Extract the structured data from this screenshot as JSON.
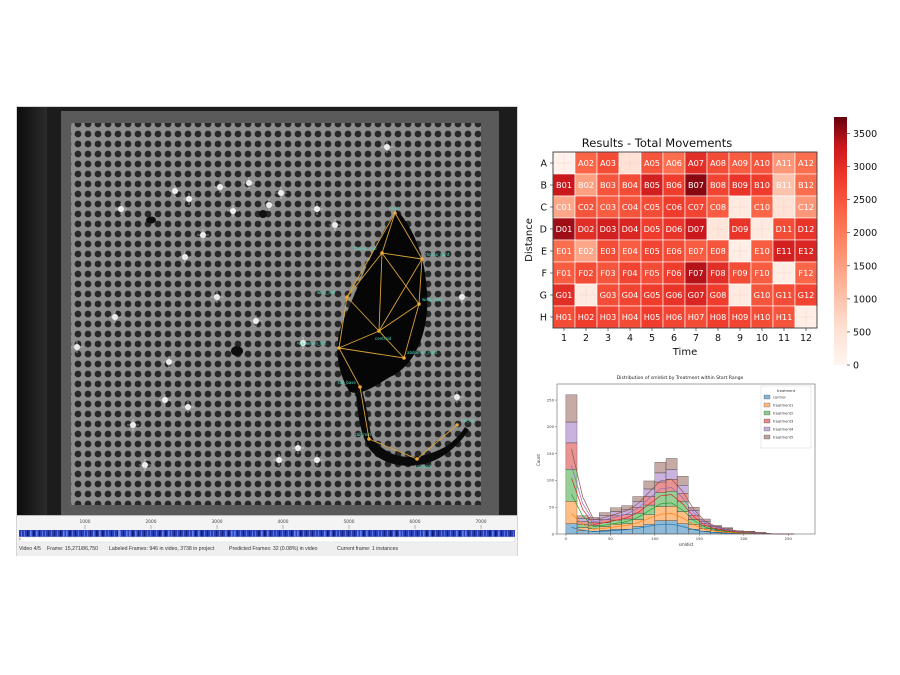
{
  "tracker": {
    "timeline_ticks": [
      "1000",
      "2000",
      "3000",
      "4000",
      "5000",
      "6000",
      "7000"
    ],
    "status": {
      "video": "Video 4/5",
      "frame": "Frame: 15,271/86,750",
      "labeled": "Labeled Frames: 946 in video, 3738 in project",
      "predicted": "Predicted Frames: 32 (0.08%) in video",
      "current": "Current frame: 1 instances"
    },
    "nodes": [
      {
        "label": "head"
      },
      {
        "label": "thorax_mid"
      },
      {
        "label": "thorax_right"
      },
      {
        "label": "wing_left"
      },
      {
        "label": "wing_right"
      },
      {
        "label": "centroid"
      },
      {
        "label": "abdomen_left"
      },
      {
        "label": "abdomen_right"
      },
      {
        "label": "tail_base"
      },
      {
        "label": "tail_mid"
      },
      {
        "label": "tail_end"
      },
      {
        "label": "tail_tip"
      }
    ]
  },
  "chart_data": [
    {
      "type": "heatmap",
      "title": "Results - Total Movements",
      "xlabel": "Time",
      "ylabel": "Distance",
      "x_ticks": [
        "1",
        "2",
        "3",
        "4",
        "5",
        "6",
        "7",
        "8",
        "9",
        "10",
        "11",
        "12"
      ],
      "rows": [
        "A",
        "B",
        "C",
        "D",
        "E",
        "F",
        "G",
        "H"
      ],
      "colorbar": {
        "min": 0,
        "max": 3750,
        "ticks": [
          0,
          500,
          1000,
          1500,
          2000,
          2500,
          3000,
          3500
        ],
        "colormap": "Reds"
      },
      "cells": [
        [
          {
            "label": "",
            "value": 100
          },
          {
            "label": "A02",
            "value": 2300
          },
          {
            "label": "A03",
            "value": 2600
          },
          {
            "label": "",
            "value": 500
          },
          {
            "label": "A05",
            "value": 2500
          },
          {
            "label": "A06",
            "value": 2200
          },
          {
            "label": "A07",
            "value": 3000
          },
          {
            "label": "A08",
            "value": 2600
          },
          {
            "label": "A09",
            "value": 2400
          },
          {
            "label": "A10",
            "value": 2500
          },
          {
            "label": "A11",
            "value": 1600
          },
          {
            "label": "A12",
            "value": 2200
          }
        ],
        [
          {
            "label": "B01",
            "value": 3300
          },
          {
            "label": "B02",
            "value": 1500
          },
          {
            "label": "B03",
            "value": 2500
          },
          {
            "label": "B04",
            "value": 2600
          },
          {
            "label": "B05",
            "value": 3200
          },
          {
            "label": "B06",
            "value": 2800
          },
          {
            "label": "B07",
            "value": 3600
          },
          {
            "label": "B08",
            "value": 2700
          },
          {
            "label": "B09",
            "value": 2900
          },
          {
            "label": "B10",
            "value": 2800
          },
          {
            "label": "B11",
            "value": 1000
          },
          {
            "label": "B12",
            "value": 2200
          }
        ],
        [
          {
            "label": "C01",
            "value": 1400
          },
          {
            "label": "C02",
            "value": 2500
          },
          {
            "label": "C03",
            "value": 2400
          },
          {
            "label": "C04",
            "value": 2500
          },
          {
            "label": "C05",
            "value": 2600
          },
          {
            "label": "C06",
            "value": 2800
          },
          {
            "label": "C07",
            "value": 2700
          },
          {
            "label": "C08",
            "value": 2400
          },
          {
            "label": "",
            "value": 300
          },
          {
            "label": "C10",
            "value": 2300
          },
          {
            "label": "",
            "value": 500
          },
          {
            "label": "C12",
            "value": 1600
          }
        ],
        [
          {
            "label": "D01",
            "value": 3500
          },
          {
            "label": "D02",
            "value": 3000
          },
          {
            "label": "D03",
            "value": 3200
          },
          {
            "label": "D04",
            "value": 3100
          },
          {
            "label": "D05",
            "value": 2800
          },
          {
            "label": "D06",
            "value": 2900
          },
          {
            "label": "D07",
            "value": 3300
          },
          {
            "label": "",
            "value": 400
          },
          {
            "label": "D09",
            "value": 2900
          },
          {
            "label": "",
            "value": 300
          },
          {
            "label": "D11",
            "value": 2600
          },
          {
            "label": "D12",
            "value": 2900
          }
        ],
        [
          {
            "label": "E01",
            "value": 2200
          },
          {
            "label": "E02",
            "value": 1400
          },
          {
            "label": "E03",
            "value": 2600
          },
          {
            "label": "E04",
            "value": 2400
          },
          {
            "label": "E05",
            "value": 2700
          },
          {
            "label": "E06",
            "value": 2600
          },
          {
            "label": "E07",
            "value": 2400
          },
          {
            "label": "E08",
            "value": 2500
          },
          {
            "label": "",
            "value": 200
          },
          {
            "label": "E10",
            "value": 2400
          },
          {
            "label": "E11",
            "value": 3200
          },
          {
            "label": "E12",
            "value": 3100
          }
        ],
        [
          {
            "label": "F01",
            "value": 2400
          },
          {
            "label": "F02",
            "value": 2600
          },
          {
            "label": "F03",
            "value": 2500
          },
          {
            "label": "F04",
            "value": 2700
          },
          {
            "label": "F05",
            "value": 2600
          },
          {
            "label": "F06",
            "value": 2800
          },
          {
            "label": "F07",
            "value": 3400
          },
          {
            "label": "F08",
            "value": 3000
          },
          {
            "label": "F09",
            "value": 2600
          },
          {
            "label": "F10",
            "value": 2400
          },
          {
            "label": "",
            "value": 200
          },
          {
            "label": "F12",
            "value": 2300
          }
        ],
        [
          {
            "label": "G01",
            "value": 3000
          },
          {
            "label": "",
            "value": 300
          },
          {
            "label": "G03",
            "value": 2600
          },
          {
            "label": "G04",
            "value": 2700
          },
          {
            "label": "G05",
            "value": 2800
          },
          {
            "label": "G06",
            "value": 2900
          },
          {
            "label": "G07",
            "value": 3100
          },
          {
            "label": "G08",
            "value": 2800
          },
          {
            "label": "",
            "value": 300
          },
          {
            "label": "G10",
            "value": 2500
          },
          {
            "label": "G11",
            "value": 2600
          },
          {
            "label": "G12",
            "value": 2700
          }
        ],
        [
          {
            "label": "H01",
            "value": 2600
          },
          {
            "label": "H02",
            "value": 2800
          },
          {
            "label": "H03",
            "value": 2700
          },
          {
            "label": "H04",
            "value": 2600
          },
          {
            "label": "H05",
            "value": 2800
          },
          {
            "label": "H06",
            "value": 2700
          },
          {
            "label": "H07",
            "value": 2600
          },
          {
            "label": "H08",
            "value": 2800
          },
          {
            "label": "H09",
            "value": 2700
          },
          {
            "label": "H10",
            "value": 2600
          },
          {
            "label": "H11",
            "value": 2500
          },
          {
            "label": "",
            "value": 200
          }
        ]
      ]
    },
    {
      "type": "bar",
      "subtype": "stacked_histogram_with_kde",
      "title": "Distribution of smldist by Treatment within Start Range",
      "xlabel": "smldist",
      "ylabel": "Count",
      "xlim": [
        -10,
        280
      ],
      "ylim": [
        0,
        280
      ],
      "x_ticks": [
        0,
        50,
        100,
        150,
        200,
        250
      ],
      "y_ticks": [
        0,
        50,
        100,
        150,
        200,
        250
      ],
      "legend_title": "treatment",
      "legend_position": "top-right",
      "bin_edges": [
        0,
        12.5,
        25,
        37.5,
        50,
        62.5,
        75,
        87.5,
        100,
        112.5,
        125,
        137.5,
        150,
        162.5,
        175,
        187.5,
        200,
        212.5,
        225,
        237.5,
        250,
        262.5
      ],
      "series": [
        {
          "name": "control",
          "color": "#1f77b4",
          "values": [
            19,
            6,
            5,
            7,
            9,
            9,
            14,
            18,
            25,
            25,
            19,
            9,
            5,
            3,
            2,
            1,
            1,
            1,
            0,
            0,
            0
          ]
        },
        {
          "name": "treatment1",
          "color": "#ff7f0e",
          "values": [
            42,
            6,
            5,
            7,
            9,
            10,
            13,
            18,
            26,
            27,
            23,
            9,
            5,
            3,
            2,
            1,
            1,
            1,
            0,
            0,
            0
          ]
        },
        {
          "name": "treatment2",
          "color": "#2ca02c",
          "values": [
            60,
            6,
            6,
            7,
            8,
            9,
            12,
            18,
            26,
            28,
            19,
            9,
            5,
            3,
            2,
            1,
            1,
            0,
            0,
            0,
            0
          ]
        },
        {
          "name": "treatment3",
          "color": "#d62728",
          "values": [
            49,
            5,
            5,
            6,
            8,
            8,
            11,
            16,
            20,
            22,
            15,
            8,
            4,
            2,
            2,
            1,
            0,
            0,
            0,
            0,
            0
          ]
        },
        {
          "name": "treatment4",
          "color": "#9467bd",
          "values": [
            39,
            6,
            6,
            7,
            8,
            9,
            10,
            14,
            17,
            18,
            15,
            9,
            5,
            3,
            2,
            1,
            1,
            0,
            0,
            0,
            0
          ]
        },
        {
          "name": "treatment5",
          "color": "#8c564b",
          "values": [
            51,
            5,
            4,
            6,
            7,
            8,
            10,
            15,
            20,
            21,
            17,
            6,
            4,
            2,
            2,
            1,
            1,
            1,
            0,
            0,
            0
          ]
        }
      ]
    }
  ]
}
